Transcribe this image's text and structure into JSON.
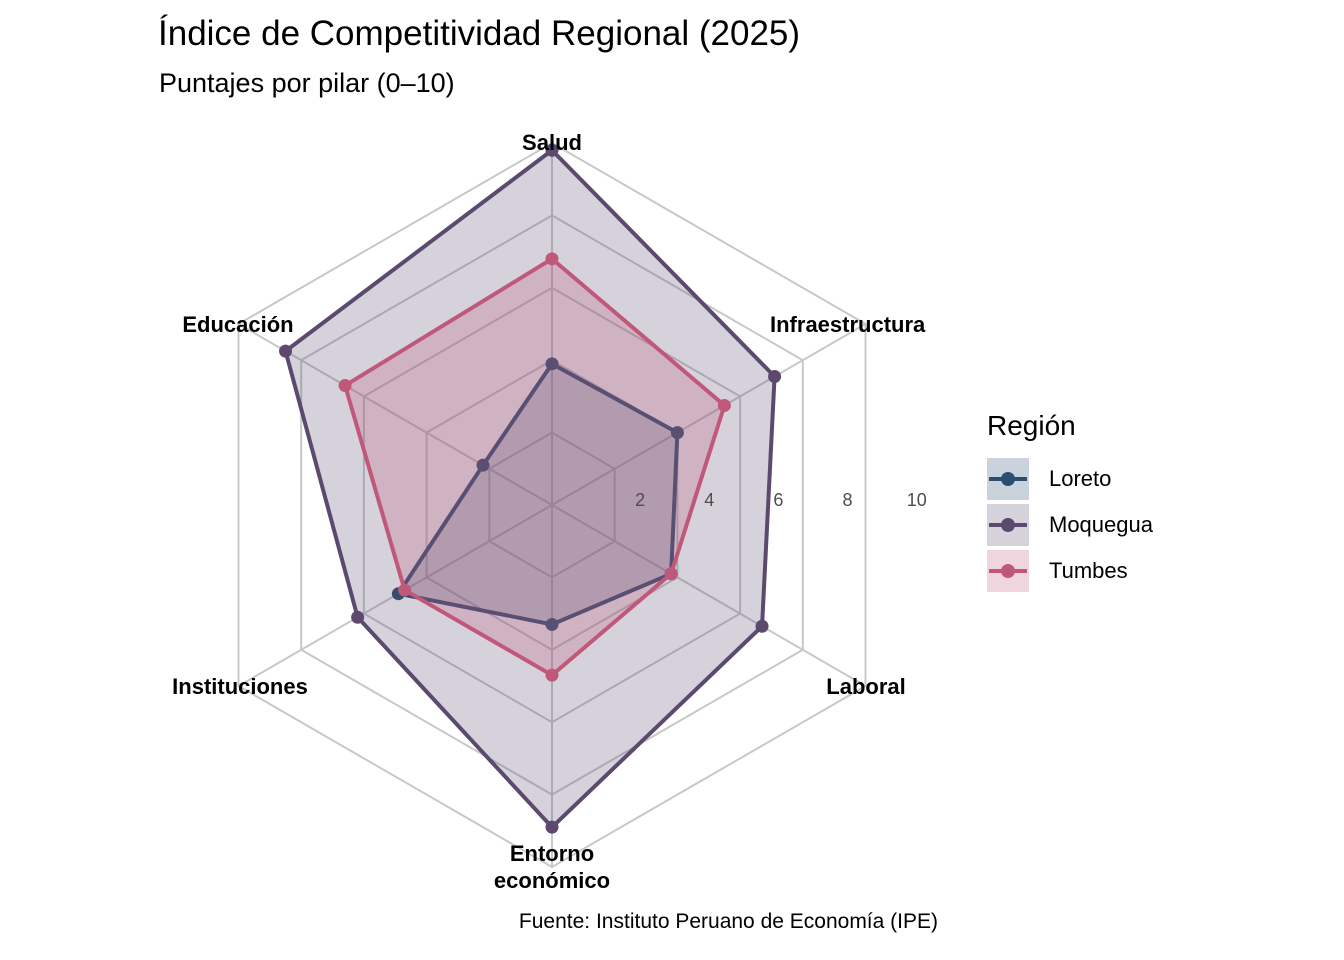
{
  "title": "Índice de Competitividad Regional (2025)",
  "subtitle": "Puntajes por pilar (0–10)",
  "caption": "Fuente: Instituto Peruano de Economía (IPE)",
  "legend": {
    "title": "Región",
    "placement": "right"
  },
  "chart_data": {
    "type": "radar",
    "axes": [
      "Salud",
      "Infraestructura",
      "Laboral",
      "Entorno económico",
      "Instituciones",
      "Educación"
    ],
    "rlim": [
      0,
      10
    ],
    "rticks": [
      2,
      4,
      6,
      8,
      10
    ],
    "series": [
      {
        "name": "Loreto",
        "color": "#2a4d72",
        "values": [
          3.9,
          4.0,
          3.8,
          3.3,
          4.9,
          2.2
        ]
      },
      {
        "name": "Moquegua",
        "color": "#5b4a6e",
        "values": [
          9.8,
          7.1,
          6.7,
          8.9,
          6.2,
          8.5
        ]
      },
      {
        "name": "Tumbes",
        "color": "#c0587a",
        "values": [
          6.8,
          5.5,
          3.8,
          4.7,
          4.7,
          6.6
        ]
      }
    ]
  }
}
